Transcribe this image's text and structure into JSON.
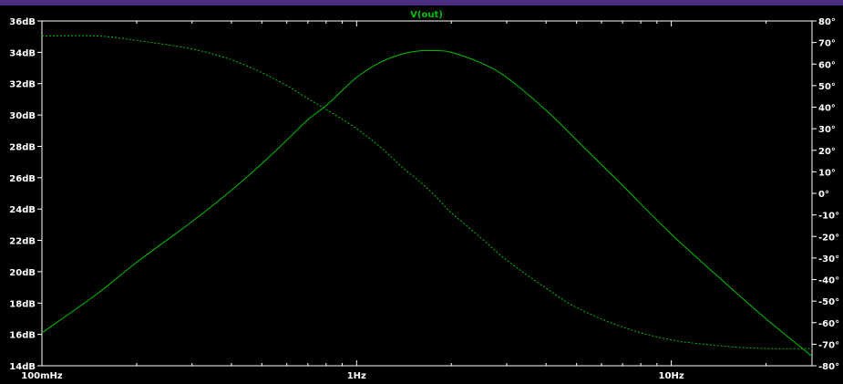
{
  "chart_data": {
    "type": "line",
    "title": "V(out)",
    "x_scale": "log",
    "xlim_hz": [
      0.1,
      28
    ],
    "x_ticks": [
      {
        "value": 0.1,
        "label": "100mHz"
      },
      {
        "value": 1,
        "label": "1Hz"
      },
      {
        "value": 10,
        "label": "10Hz"
      }
    ],
    "y_left": {
      "unit": "dB",
      "ylim": [
        14,
        36
      ],
      "ticks": [
        {
          "value": 36,
          "label": "36dB"
        },
        {
          "value": 34,
          "label": "34dB"
        },
        {
          "value": 32,
          "label": "32dB"
        },
        {
          "value": 30,
          "label": "30dB"
        },
        {
          "value": 28,
          "label": "28dB"
        },
        {
          "value": 26,
          "label": "26dB"
        },
        {
          "value": 24,
          "label": "24dB"
        },
        {
          "value": 22,
          "label": "22dB"
        },
        {
          "value": 20,
          "label": "20dB"
        },
        {
          "value": 18,
          "label": "18dB"
        },
        {
          "value": 16,
          "label": "16dB"
        },
        {
          "value": 14,
          "label": "14dB"
        }
      ]
    },
    "y_right": {
      "unit": "°",
      "ylim": [
        -80,
        80
      ],
      "ticks": [
        {
          "value": 80,
          "label": "80°"
        },
        {
          "value": 70,
          "label": "70°"
        },
        {
          "value": 60,
          "label": "60°"
        },
        {
          "value": 50,
          "label": "50°"
        },
        {
          "value": 40,
          "label": "40°"
        },
        {
          "value": 30,
          "label": "30°"
        },
        {
          "value": 20,
          "label": "20°"
        },
        {
          "value": 10,
          "label": "10°"
        },
        {
          "value": 0,
          "label": "0°"
        },
        {
          "value": -10,
          "label": "-10°"
        },
        {
          "value": -20,
          "label": "-20°"
        },
        {
          "value": -30,
          "label": "-30°"
        },
        {
          "value": -40,
          "label": "-40°"
        },
        {
          "value": -50,
          "label": "-50°"
        },
        {
          "value": -60,
          "label": "-60°"
        },
        {
          "value": -70,
          "label": "-70°"
        },
        {
          "value": -80,
          "label": "-80°"
        }
      ]
    },
    "grid": false,
    "series": [
      {
        "kind": "magnitude",
        "axis": "left",
        "style": "solid",
        "color": "#00c000",
        "x": [
          0.1,
          0.15,
          0.2,
          0.3,
          0.4,
          0.5,
          0.6,
          0.7,
          0.8,
          1.0,
          1.2,
          1.4,
          1.6,
          1.8,
          2.0,
          2.5,
          3.0,
          4.0,
          5.0,
          7.0,
          10.0,
          15.0,
          20.0,
          28.0
        ],
        "y": [
          16.1,
          18.6,
          20.6,
          23.2,
          25.2,
          26.9,
          28.4,
          29.7,
          30.6,
          32.4,
          33.4,
          33.9,
          34.1,
          34.1,
          34.0,
          33.3,
          32.4,
          30.3,
          28.4,
          25.5,
          22.4,
          19.2,
          17.0,
          14.6
        ]
      },
      {
        "kind": "phase",
        "axis": "right",
        "style": "dashed",
        "color": "#00c000",
        "x": [
          0.1,
          0.15,
          0.2,
          0.3,
          0.4,
          0.5,
          0.6,
          0.7,
          0.8,
          1.0,
          1.2,
          1.4,
          1.6,
          1.8,
          2.0,
          2.5,
          3.0,
          4.0,
          5.0,
          7.0,
          10.0,
          15.0,
          20.0,
          28.0
        ],
        "y": [
          73,
          73,
          71,
          67,
          62,
          56,
          50,
          44,
          39,
          30,
          21,
          12,
          5,
          -2,
          -9,
          -21,
          -31,
          -44,
          -53,
          -62,
          -68,
          -71,
          -72,
          -72
        ]
      }
    ],
    "colors": {
      "background": "#000000",
      "axes": "#ffffff",
      "title": "#00c000",
      "border": "#4b2e83"
    }
  }
}
